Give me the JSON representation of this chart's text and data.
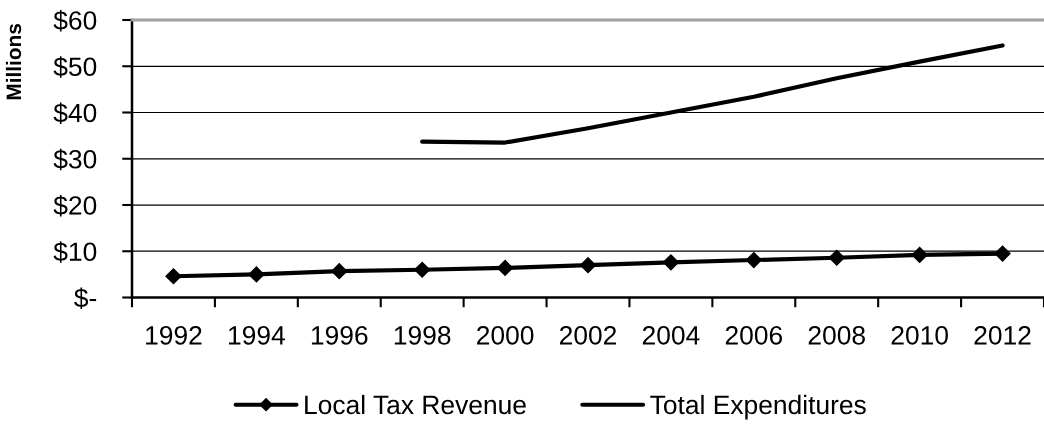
{
  "chart_data": {
    "type": "line",
    "ylabel": "Millions",
    "categories": [
      "1992",
      "1994",
      "1996",
      "1998",
      "2000",
      "2002",
      "2004",
      "2006",
      "2008",
      "2010",
      "2012"
    ],
    "series": [
      {
        "name": "Local Tax Revenue",
        "color": "#000000",
        "marker": "diamond",
        "values": [
          4.6,
          5.0,
          5.7,
          6.0,
          6.4,
          7.0,
          7.6,
          8.1,
          8.6,
          9.2,
          9.5
        ]
      },
      {
        "name": "Total Expenditures",
        "color": "#000000",
        "marker": "none",
        "values": [
          null,
          null,
          null,
          33.7,
          33.5,
          36.6,
          40.0,
          43.4,
          47.4,
          51.0,
          54.5
        ]
      }
    ],
    "ylim": [
      0,
      60
    ],
    "yticks": [
      {
        "value": 0,
        "label": "$-"
      },
      {
        "value": 10,
        "label": "$10"
      },
      {
        "value": 20,
        "label": "$20"
      },
      {
        "value": 30,
        "label": "$30"
      },
      {
        "value": 40,
        "label": "$40"
      },
      {
        "value": 50,
        "label": "$50"
      },
      {
        "value": 60,
        "label": "$60"
      }
    ],
    "grid": "y",
    "legend": "bottom",
    "line_style": "solid"
  }
}
